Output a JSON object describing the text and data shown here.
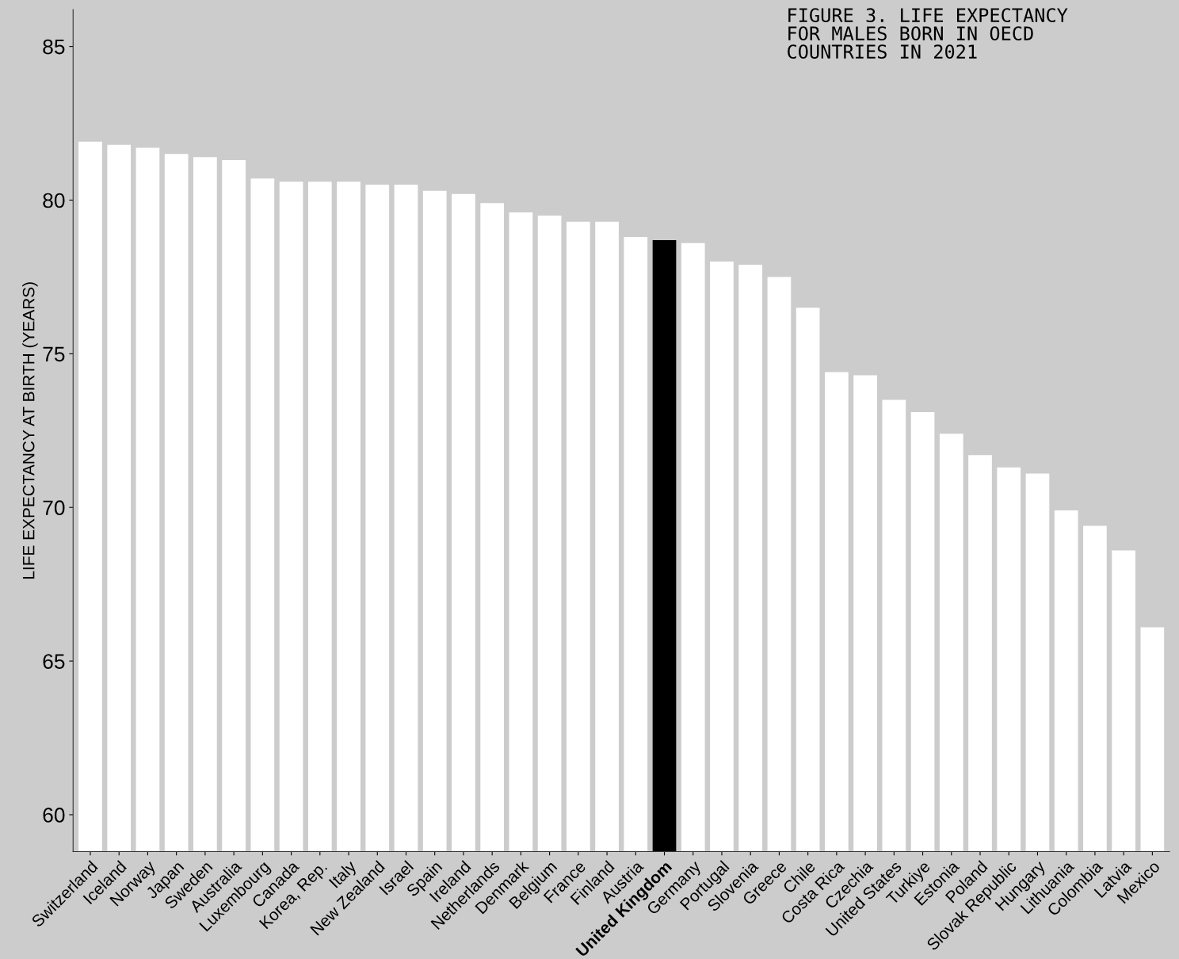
{
  "chart_data": {
    "type": "bar",
    "title": "FIGURE 3. LIFE EXPECTANCY\nFOR MALES BORN IN OECD\nCOUNTRIES IN 2021",
    "ylabel": "LIFE EXPECTANCY AT BIRTH (YEARS)",
    "categories": [
      "Switzerland",
      "Iceland",
      "Norway",
      "Japan",
      "Sweden",
      "Australia",
      "Luxembourg",
      "Canada",
      "Korea, Rep.",
      "Italy",
      "New Zealand",
      "Israel",
      "Spain",
      "Ireland",
      "Netherlands",
      "Denmark",
      "Belgium",
      "France",
      "Finland",
      "Austria",
      "United Kingdom",
      "Germany",
      "Portugal",
      "Slovenia",
      "Greece",
      "Chile",
      "Costa Rica",
      "Czechia",
      "United States",
      "Turkiye",
      "Estonia",
      "Poland",
      "Slovak Republic",
      "Hungary",
      "Lithuania",
      "Colombia",
      "Latvia",
      "Mexico"
    ],
    "values": [
      81.9,
      81.8,
      81.7,
      81.5,
      81.4,
      81.3,
      80.7,
      80.6,
      80.6,
      80.6,
      80.5,
      80.5,
      80.3,
      80.2,
      79.9,
      79.6,
      79.5,
      79.3,
      79.3,
      78.8,
      78.7,
      78.6,
      78.0,
      77.9,
      77.5,
      76.5,
      74.4,
      74.3,
      73.5,
      73.1,
      72.4,
      71.7,
      71.3,
      71.1,
      69.9,
      69.4,
      68.6,
      66.1
    ],
    "colors": [
      "#ffffff",
      "#ffffff",
      "#ffffff",
      "#ffffff",
      "#ffffff",
      "#ffffff",
      "#ffffff",
      "#ffffff",
      "#ffffff",
      "#ffffff",
      "#ffffff",
      "#ffffff",
      "#ffffff",
      "#ffffff",
      "#ffffff",
      "#ffffff",
      "#ffffff",
      "#ffffff",
      "#ffffff",
      "#ffffff",
      "#000000",
      "#ffffff",
      "#ffffff",
      "#ffffff",
      "#ffffff",
      "#ffffff",
      "#ffffff",
      "#ffffff",
      "#ffffff",
      "#ffffff",
      "#ffffff",
      "#ffffff",
      "#ffffff",
      "#ffffff",
      "#ffffff",
      "#ffffff",
      "#ffffff",
      "#ffffff"
    ],
    "ylim": [
      58.8,
      86.2
    ],
    "yticks": [
      60,
      65,
      70,
      75,
      80,
      85
    ],
    "grid": false,
    "legend": false
  }
}
